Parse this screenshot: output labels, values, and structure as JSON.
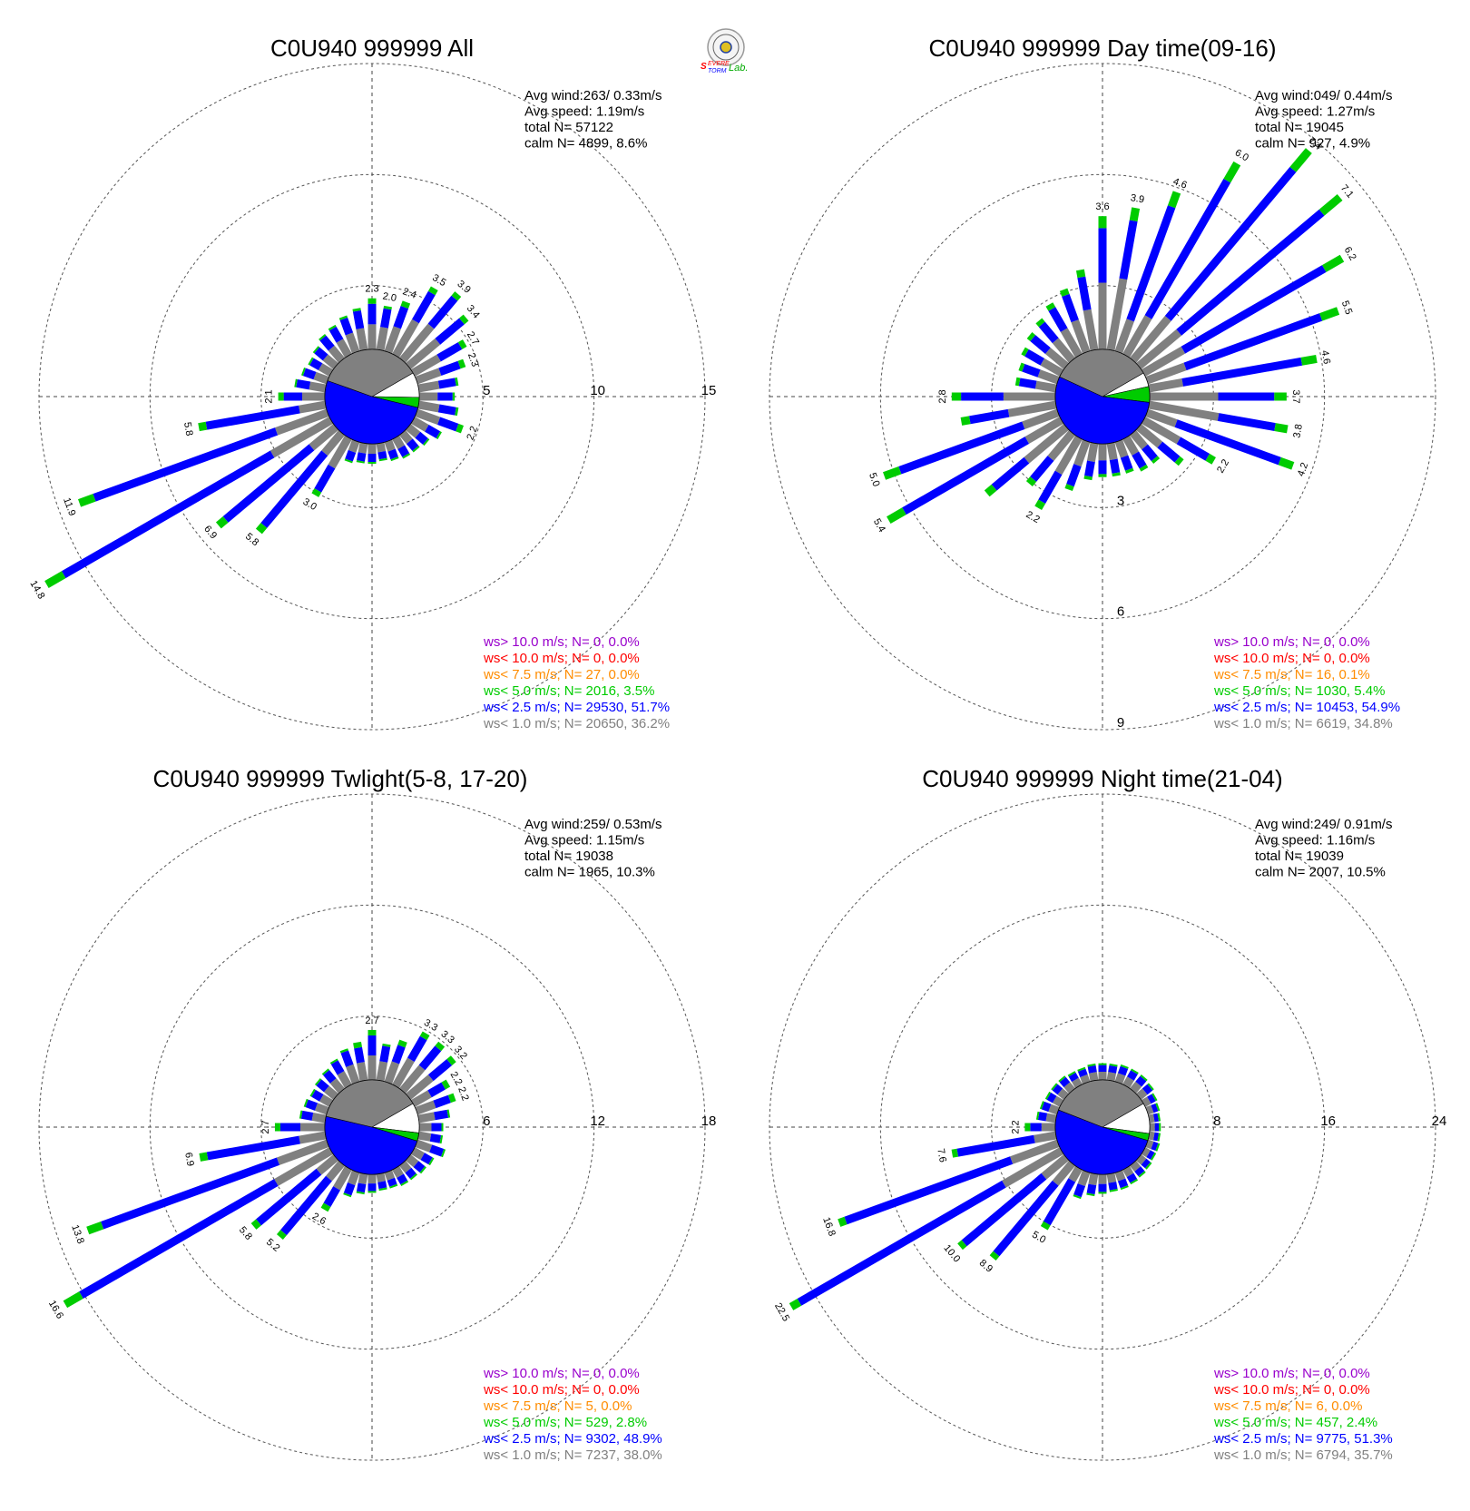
{
  "logo": {
    "name": "Severe Storm Lab."
  },
  "colors": {
    "ws_gt_10": "#9900cc",
    "ws_lt_10": "#ff0000",
    "ws_lt_7_5": "#ff8c00",
    "ws_lt_5": "#00cc00",
    "ws_lt_2_5": "#0000ff",
    "ws_lt_1": "#808080"
  },
  "chart_data": [
    {
      "type": "wind-rose",
      "title": "C0U940 999999 All",
      "stats": [
        "Avg wind:263/ 0.33m/s",
        "Avg speed: 1.19m/s",
        "total N=      57122",
        "calm N=   4899,   8.6%"
      ],
      "rings": [
        5,
        10,
        15
      ],
      "ring_labels": [
        "5",
        "10",
        "15"
      ],
      "ring_label_side": "east",
      "calm_pie": {
        "calm_pct": 8.6,
        "lt1_pct": 36.2,
        "lt2_5_pct": 51.7,
        "lt5_pct": 3.5
      },
      "directions_deg": [
        0,
        10,
        20,
        30,
        40,
        50,
        60,
        70,
        80,
        90,
        100,
        110,
        120,
        130,
        140,
        150,
        160,
        170,
        180,
        190,
        200,
        210,
        220,
        230,
        240,
        250,
        260,
        270,
        280,
        290,
        300,
        310,
        320,
        330,
        340,
        350
      ],
      "totals": [
        2.3,
        2.0,
        2.4,
        3.5,
        3.9,
        3.4,
        2.7,
        2.3,
        1.8,
        1.6,
        1.8,
        2.2,
        1.4,
        1.1,
        1.0,
        1.0,
        0.9,
        0.8,
        0.9,
        0.9,
        1.0,
        3.0,
        5.8,
        6.9,
        14.8,
        11.9,
        5.8,
        2.1,
        1.4,
        1.2,
        1.1,
        1.2,
        1.4,
        1.5,
        1.7,
        1.9
      ],
      "green_share": 0.06,
      "petal_labels": {
        "0": "2.3",
        "10": "2.0",
        "20": "2.4",
        "30": "3.5",
        "40": "3.9",
        "50": "3.4",
        "60": "2.7",
        "70": "2.3",
        "110": "2.2",
        "210": "3.0",
        "220": "5.8",
        "230": "6.9",
        "240": "14.8",
        "250": "11.9",
        "260": "5.8",
        "270": "2.1"
      },
      "legend": [
        {
          "text": "ws> 10.0 m/s; N=      0,  0.0%",
          "color": "#9900cc"
        },
        {
          "text": "ws< 10.0 m/s; N=      0,  0.0%",
          "color": "#ff0000"
        },
        {
          "text": "ws<  7.5 m/s; N=     27,  0.0%",
          "color": "#ff8c00"
        },
        {
          "text": "ws<  5.0 m/s; N=  2016,  3.5%",
          "color": "#00cc00"
        },
        {
          "text": "ws<  2.5 m/s; N= 29530, 51.7%",
          "color": "#0000ff"
        },
        {
          "text": "ws<  1.0 m/s; N= 20650, 36.2%",
          "color": "#808080"
        }
      ]
    },
    {
      "type": "wind-rose",
      "title": "C0U940 999999 Day time(09-16)",
      "stats": [
        "Avg wind:049/ 0.44m/s",
        "Avg speed: 1.27m/s",
        "total N=      19045",
        "calm N=    927,   4.9%"
      ],
      "rings": [
        3,
        6,
        9
      ],
      "ring_labels": [
        "3",
        "6",
        "9"
      ],
      "ring_label_side": "south",
      "calm_pie": {
        "calm_pct": 4.9,
        "lt1_pct": 34.8,
        "lt2_5_pct": 54.9,
        "lt5_pct": 5.4
      },
      "directions_deg": [
        0,
        10,
        20,
        30,
        40,
        50,
        60,
        70,
        80,
        90,
        100,
        110,
        120,
        130,
        140,
        150,
        160,
        170,
        180,
        190,
        200,
        210,
        220,
        230,
        240,
        250,
        260,
        270,
        280,
        290,
        300,
        310,
        320,
        330,
        340,
        350
      ],
      "totals": [
        3.6,
        3.9,
        4.6,
        6.0,
        7.4,
        7.1,
        6.2,
        5.5,
        4.6,
        3.7,
        3.8,
        4.2,
        2.2,
        1.5,
        1.0,
        1.0,
        0.9,
        0.9,
        0.9,
        1.0,
        1.4,
        2.2,
        1.8,
        2.8,
        5.4,
        5.0,
        2.6,
        2.8,
        1.1,
        1.1,
        1.2,
        1.3,
        1.4,
        1.6,
        1.8,
        2.2
      ],
      "green_share": 0.09,
      "petal_labels": {
        "0": "3.6",
        "10": "3.9",
        "20": "4.6",
        "30": "6.0",
        "40": "7.4",
        "50": "7.1",
        "60": "6.2",
        "70": "5.5",
        "80": "4.6",
        "90": "3.7",
        "100": "3.8",
        "110": "4.2",
        "120": "2.2",
        "210": "2.2",
        "240": "5.4",
        "250": "5.0",
        "270": "2.8"
      },
      "legend": [
        {
          "text": "ws> 10.0 m/s; N=      0,  0.0%",
          "color": "#9900cc"
        },
        {
          "text": "ws< 10.0 m/s; N=      0,  0.0%",
          "color": "#ff0000"
        },
        {
          "text": "ws<  7.5 m/s; N=     16,  0.1%",
          "color": "#ff8c00"
        },
        {
          "text": "ws<  5.0 m/s; N=  1030,  5.4%",
          "color": "#00cc00"
        },
        {
          "text": "ws<  2.5 m/s; N= 10453, 54.9%",
          "color": "#0000ff"
        },
        {
          "text": "ws<  1.0 m/s; N=  6619, 34.8%",
          "color": "#808080"
        }
      ]
    },
    {
      "type": "wind-rose",
      "title": "C0U940 999999 Twlight(5-8, 17-20)",
      "stats": [
        "Avg wind:259/ 0.53m/s",
        "Avg speed: 1.15m/s",
        "total N=      19038",
        "calm N=   1965,  10.3%"
      ],
      "rings": [
        6,
        12,
        18
      ],
      "ring_labels": [
        "6",
        "12",
        "18"
      ],
      "ring_label_side": "east",
      "calm_pie": {
        "calm_pct": 10.3,
        "lt1_pct": 38.0,
        "lt2_5_pct": 48.9,
        "lt5_pct": 2.8
      },
      "directions_deg": [
        0,
        10,
        20,
        30,
        40,
        50,
        60,
        70,
        80,
        90,
        100,
        110,
        120,
        130,
        140,
        150,
        160,
        170,
        180,
        190,
        200,
        210,
        220,
        230,
        240,
        250,
        260,
        270,
        280,
        290,
        300,
        310,
        320,
        330,
        340,
        350
      ],
      "totals": [
        2.7,
        2.0,
        2.4,
        3.3,
        3.3,
        3.2,
        2.2,
        2.2,
        1.7,
        1.3,
        1.3,
        1.6,
        1.2,
        1.1,
        1.0,
        1.0,
        0.9,
        0.9,
        1.0,
        1.1,
        1.4,
        2.6,
        5.2,
        5.8,
        16.6,
        13.8,
        6.9,
        2.7,
        1.4,
        1.3,
        1.2,
        1.3,
        1.4,
        1.6,
        1.9,
        2.1
      ],
      "green_share": 0.06,
      "petal_labels": {
        "0": "2.7",
        "30": "3.3",
        "40": "3.3",
        "50": "3.2",
        "60": "2.2",
        "70": "2.2",
        "210": "2.6",
        "220": "5.2",
        "230": "5.8",
        "240": "16.6",
        "250": "13.8",
        "260": "6.9",
        "270": "2.7"
      },
      "legend": [
        {
          "text": "ws> 10.0 m/s; N=      0,  0.0%",
          "color": "#9900cc"
        },
        {
          "text": "ws< 10.0 m/s; N=      0,  0.0%",
          "color": "#ff0000"
        },
        {
          "text": "ws<  7.5 m/s; N=      5,  0.0%",
          "color": "#ff8c00"
        },
        {
          "text": "ws<  5.0 m/s; N=    529,  2.8%",
          "color": "#00cc00"
        },
        {
          "text": "ws<  2.5 m/s; N=  9302, 48.9%",
          "color": "#0000ff"
        },
        {
          "text": "ws<  1.0 m/s; N=  7237, 38.0%",
          "color": "#808080"
        }
      ]
    },
    {
      "type": "wind-rose",
      "title": "C0U940 999999 Night time(21-04)",
      "stats": [
        "Avg wind:249/ 0.91m/s",
        "Avg speed: 1.16m/s",
        "total N=      19039",
        "calm N=   2007,  10.5%"
      ],
      "rings": [
        8,
        16,
        24
      ],
      "ring_labels": [
        "8",
        "16",
        "24"
      ],
      "ring_label_side": "east",
      "calm_pie": {
        "calm_pct": 10.5,
        "lt1_pct": 35.7,
        "lt2_5_pct": 51.3,
        "lt5_pct": 2.4
      },
      "directions_deg": [
        0,
        10,
        20,
        30,
        40,
        50,
        60,
        70,
        80,
        90,
        100,
        110,
        120,
        130,
        140,
        150,
        160,
        170,
        180,
        190,
        200,
        210,
        220,
        230,
        240,
        250,
        260,
        270,
        280,
        290,
        300,
        310,
        320,
        330,
        340,
        350
      ],
      "totals": [
        1.2,
        1.2,
        1.3,
        1.3,
        1.3,
        1.2,
        1.0,
        0.9,
        0.8,
        0.8,
        0.8,
        0.9,
        0.9,
        1.0,
        1.1,
        1.2,
        1.3,
        1.3,
        1.4,
        1.6,
        2.0,
        5.0,
        8.9,
        10.0,
        22.5,
        16.8,
        7.6,
        2.2,
        1.4,
        1.3,
        1.2,
        1.2,
        1.2,
        1.1,
        1.1,
        1.2
      ],
      "green_share": 0.03,
      "petal_labels": {
        "210": "5.0",
        "220": "8.9",
        "230": "10.0",
        "240": "22.5",
        "250": "16.8",
        "260": "7.6",
        "270": "2.2"
      },
      "legend": [
        {
          "text": "ws> 10.0 m/s; N=      0,  0.0%",
          "color": "#9900cc"
        },
        {
          "text": "ws< 10.0 m/s; N=      0,  0.0%",
          "color": "#ff0000"
        },
        {
          "text": "ws<  7.5 m/s; N=      6,  0.0%",
          "color": "#ff8c00"
        },
        {
          "text": "ws<  5.0 m/s; N=    457,  2.4%",
          "color": "#00cc00"
        },
        {
          "text": "ws<  2.5 m/s; N=  9775, 51.3%",
          "color": "#0000ff"
        },
        {
          "text": "ws<  1.0 m/s; N=  6794, 35.7%",
          "color": "#808080"
        }
      ]
    }
  ]
}
